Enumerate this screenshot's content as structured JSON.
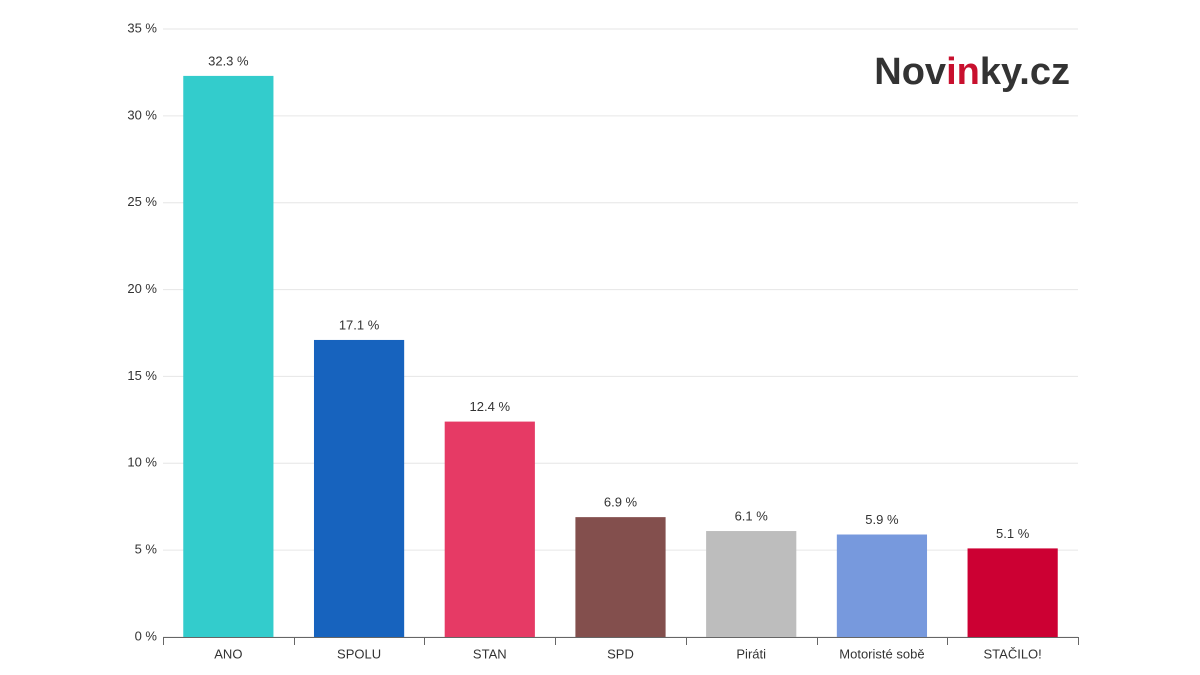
{
  "logo": [
    "Nov",
    "in",
    "ky.cz"
  ],
  "chart_data": {
    "type": "bar",
    "categories": [
      "ANO",
      "SPOLU",
      "STAN",
      "SPD",
      "Piráti",
      "Motoristé sobě",
      "STAČILO!"
    ],
    "values": [
      32.3,
      17.1,
      12.4,
      6.9,
      6.1,
      5.9,
      5.1
    ],
    "value_labels": [
      "32.3 %",
      "17.1 %",
      "12.4 %",
      "6.9 %",
      "6.1 %",
      "5.9 %",
      "5.1 %"
    ],
    "colors": [
      "#33cccc",
      "#1763be",
      "#e63a65",
      "#834f4d",
      "#bdbdbd",
      "#7799dd",
      "#cc0033"
    ],
    "ylim": [
      0,
      35
    ],
    "yticks": [
      {
        "value": 0,
        "label": "0 %"
      },
      {
        "value": 5,
        "label": "5 %"
      },
      {
        "value": 10,
        "label": "10 %"
      },
      {
        "value": 15,
        "label": "15 %"
      },
      {
        "value": 20,
        "label": "20 %"
      },
      {
        "value": 25,
        "label": "25 %"
      },
      {
        "value": 30,
        "label": "30 %"
      },
      {
        "value": 35,
        "label": "35 %"
      }
    ],
    "grid": true
  }
}
